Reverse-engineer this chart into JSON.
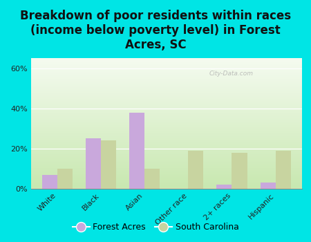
{
  "title": "Breakdown of poor residents within races\n(income below poverty level) in Forest\nAcres, SC",
  "categories": [
    "White",
    "Black",
    "Asian",
    "Other race",
    "2+ races",
    "Hispanic"
  ],
  "forest_acres": [
    7,
    25,
    38,
    0,
    2,
    3
  ],
  "south_carolina": [
    10,
    24,
    10,
    19,
    18,
    19
  ],
  "forest_acres_color": "#c9a8dc",
  "south_carolina_color": "#c8d4a0",
  "background_color": "#00e5e5",
  "ylim": [
    0,
    65
  ],
  "yticks": [
    0,
    20,
    40,
    60
  ],
  "ytick_labels": [
    "0%",
    "20%",
    "40%",
    "60%"
  ],
  "bar_width": 0.35,
  "legend_labels": [
    "Forest Acres",
    "South Carolina"
  ],
  "watermark": "City-Data.com",
  "title_fontsize": 12,
  "tick_fontsize": 8,
  "legend_fontsize": 9,
  "gradient_colors_lr": [
    "#d8eecc",
    "#f5fbf0"
  ],
  "gradient_colors_tb": [
    "#f5fbf0",
    "#d8eecc"
  ]
}
